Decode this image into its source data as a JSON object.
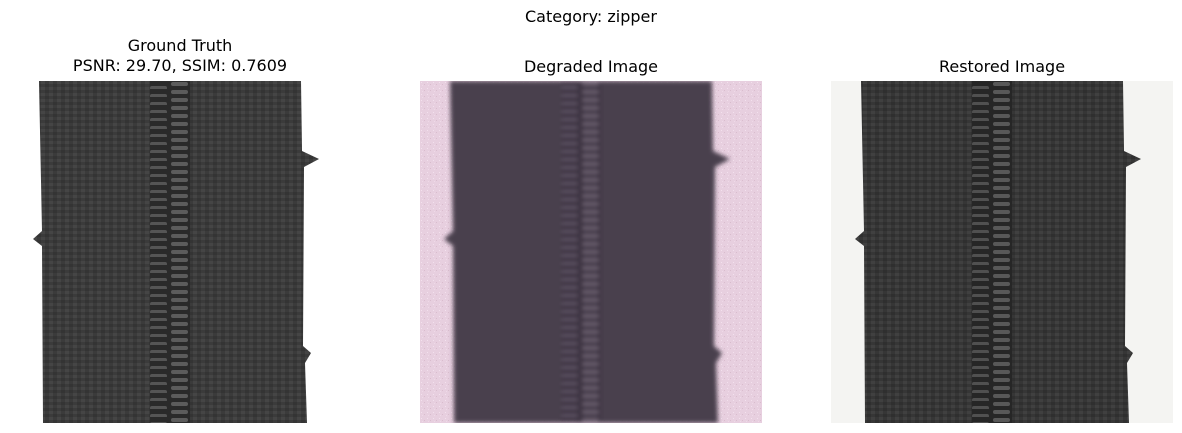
{
  "figure": {
    "suptitle": "Category: zipper"
  },
  "panels": [
    {
      "title": "Ground Truth",
      "subtitle": "PSNR: 29.70, SSIM: 0.7609",
      "image": "zipper-ground-truth-photo"
    },
    {
      "title": "Degraded Image",
      "image": "zipper-degraded-photo"
    },
    {
      "title": "Restored Image",
      "image": "zipper-restored-photo"
    }
  ],
  "colors": {
    "fabric_dark": "#3a3a3a",
    "teeth": "#555555",
    "bg_gt": "#ffffff",
    "bg_degraded": "#e8cfdf",
    "fabric_degraded": "#4a3f4d",
    "bg_restored": "#f4f4f2"
  }
}
